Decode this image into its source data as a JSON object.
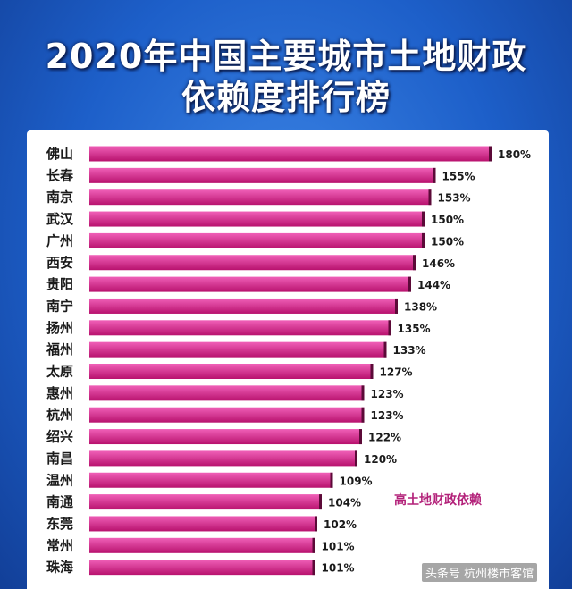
{
  "title_line1": "2020年中国主要城市土地财政",
  "title_line2": "依赖度排行榜",
  "annotation": "高土地财政依赖",
  "watermark": "头条号 杭州楼市客馆",
  "colors": {
    "bar_top": "#f060b8",
    "bar_bottom": "#b8126e",
    "bar_end": "#5c0a38",
    "label": "#1a1a1a"
  },
  "chart_data": {
    "type": "bar",
    "orientation": "horizontal",
    "title": "2020年中国主要城市土地财政依赖度排行榜",
    "categories": [
      "佛山",
      "长春",
      "南京",
      "武汉",
      "广州",
      "西安",
      "贵阳",
      "南宁",
      "扬州",
      "福州",
      "太原",
      "惠州",
      "杭州",
      "绍兴",
      "南昌",
      "温州",
      "南通",
      "东莞",
      "常州",
      "珠海"
    ],
    "values": [
      180,
      155,
      153,
      150,
      150,
      146,
      144,
      138,
      135,
      133,
      127,
      123,
      123,
      122,
      120,
      109,
      104,
      102,
      101,
      101
    ],
    "value_labels": [
      "180%",
      "155%",
      "153%",
      "150%",
      "150%",
      "146%",
      "144%",
      "138%",
      "135%",
      "133%",
      "127%",
      "123%",
      "123%",
      "122%",
      "120%",
      "109%",
      "104%",
      "102%",
      "101%",
      "101%"
    ],
    "unit": "%"
  }
}
